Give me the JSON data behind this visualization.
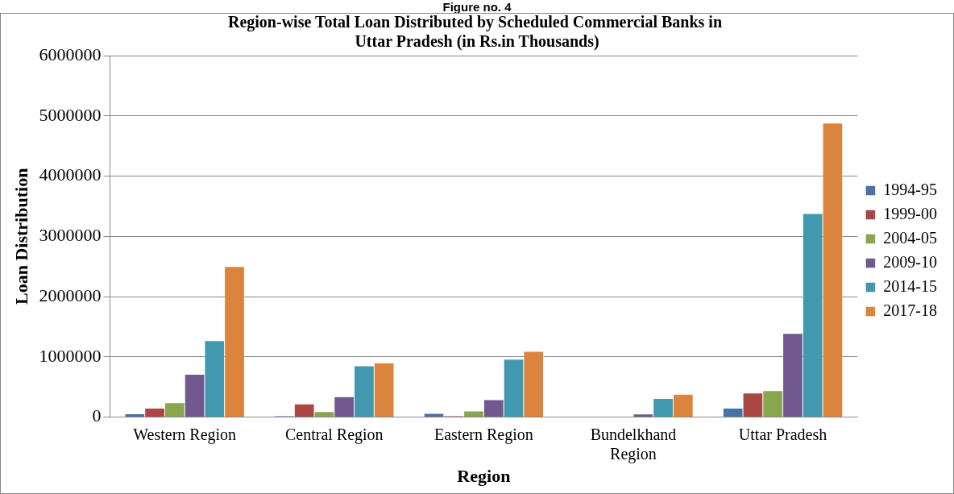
{
  "chart_data": {
    "type": "bar",
    "title": "Region-wise Total Loan Distributed by Scheduled Commercial Banks in  Uttar Pradesh (in Rs.in Thousands)",
    "xlabel": "Region",
    "ylabel": "Loan Distribution",
    "annotations": [
      "Figure no. 4"
    ],
    "categories": [
      "Western Region",
      "Central Region",
      "Eastern Region",
      "Bundelkhand Region",
      "Uttar Pradesh"
    ],
    "series": [
      {
        "name": "1994-95",
        "color": "#4572a7",
        "values": [
          55000,
          20000,
          60000,
          0,
          150000
        ]
      },
      {
        "name": "1999-00",
        "color": "#aa4643",
        "values": [
          150000,
          220000,
          20000,
          0,
          400000
        ]
      },
      {
        "name": "2004-05",
        "color": "#89a54e",
        "values": [
          240000,
          90000,
          100000,
          0,
          440000
        ]
      },
      {
        "name": "2009-10",
        "color": "#71588f",
        "values": [
          710000,
          340000,
          290000,
          50000,
          1390000
        ]
      },
      {
        "name": "2014-15",
        "color": "#4198af",
        "values": [
          1270000,
          850000,
          960000,
          310000,
          3380000
        ]
      },
      {
        "name": "2017-18",
        "color": "#db843d",
        "values": [
          2500000,
          900000,
          1090000,
          380000,
          4880000
        ]
      }
    ],
    "ylim": [
      0,
      6000000
    ],
    "yticks": [
      0,
      1000000,
      2000000,
      3000000,
      4000000,
      5000000,
      6000000
    ],
    "grid": "y",
    "legend": "right"
  }
}
